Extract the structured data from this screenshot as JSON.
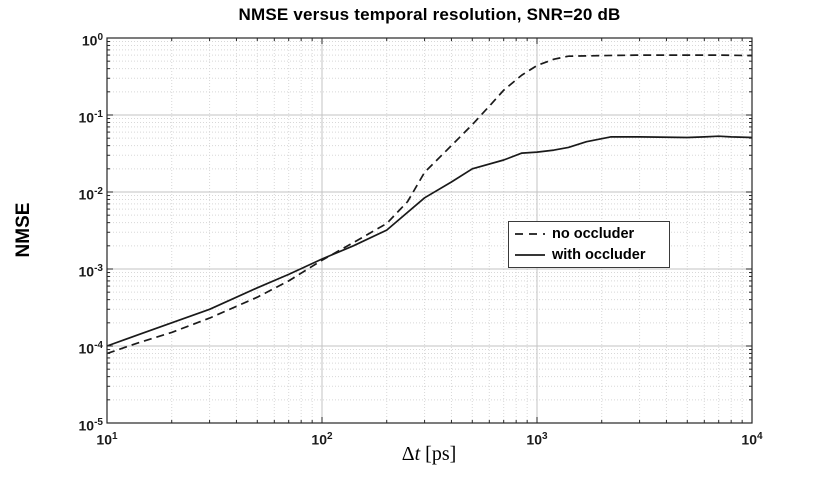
{
  "figure": {
    "title": "NMSE versus temporal resolution, SNR=20 dB",
    "ylabel": "NMSE",
    "xlabel": {
      "delta": "Δ",
      "variable": "t",
      "unit": " [ps]"
    },
    "background": "#ffffff"
  },
  "legend": {
    "entries": [
      {
        "label": "no occluder",
        "line_style": "dashed"
      },
      {
        "label": "with occluder",
        "line_style": "solid"
      }
    ],
    "position": "center-right"
  },
  "colors": {
    "curve": "#1a1a1a",
    "axis": "#262626",
    "grid_major": "#c3c3c3",
    "grid_minor": "#d8d8d8",
    "text": "#000000"
  },
  "chart_data": {
    "type": "line",
    "title": "NMSE versus temporal resolution, SNR=20 dB",
    "xlabel": "Δt [ps]",
    "ylabel": "NMSE",
    "x_scale": "log",
    "y_scale": "log",
    "xlim": [
      10,
      10000
    ],
    "ylim": [
      1e-05,
      1
    ],
    "tick_base": "10",
    "x_tick_exponents": [
      1,
      2,
      3,
      4
    ],
    "y_tick_exponents": [
      0,
      -1,
      -2,
      -3,
      -4,
      -5
    ],
    "grid": true,
    "minor_grid": true,
    "legend_position": "center-right",
    "series": [
      {
        "name": "no occluder",
        "style": "dashed",
        "x": [
          10,
          14,
          20,
          30,
          50,
          70,
          100,
          140,
          200,
          250,
          300,
          400,
          500,
          600,
          700,
          850,
          1000,
          1200,
          1400,
          2000,
          3000,
          5000,
          7000,
          10000
        ],
        "y": [
          8e-05,
          0.00011,
          0.00015,
          0.00023,
          0.00043,
          0.0007,
          0.0013,
          0.0022,
          0.0039,
          0.0075,
          0.018,
          0.04,
          0.075,
          0.13,
          0.21,
          0.33,
          0.44,
          0.53,
          0.58,
          0.59,
          0.6,
          0.6,
          0.6,
          0.59
        ]
      },
      {
        "name": "with occluder",
        "style": "solid",
        "x": [
          10,
          14,
          20,
          30,
          50,
          70,
          100,
          140,
          200,
          300,
          400,
          500,
          700,
          850,
          1000,
          1200,
          1400,
          1700,
          2200,
          3000,
          5000,
          6000,
          7000,
          8000,
          10000
        ],
        "y": [
          0.0001,
          0.00014,
          0.0002,
          0.0003,
          0.00057,
          0.00085,
          0.00135,
          0.002,
          0.0032,
          0.0084,
          0.0135,
          0.02,
          0.026,
          0.032,
          0.033,
          0.035,
          0.038,
          0.045,
          0.052,
          0.052,
          0.051,
          0.052,
          0.053,
          0.052,
          0.051
        ]
      }
    ]
  }
}
